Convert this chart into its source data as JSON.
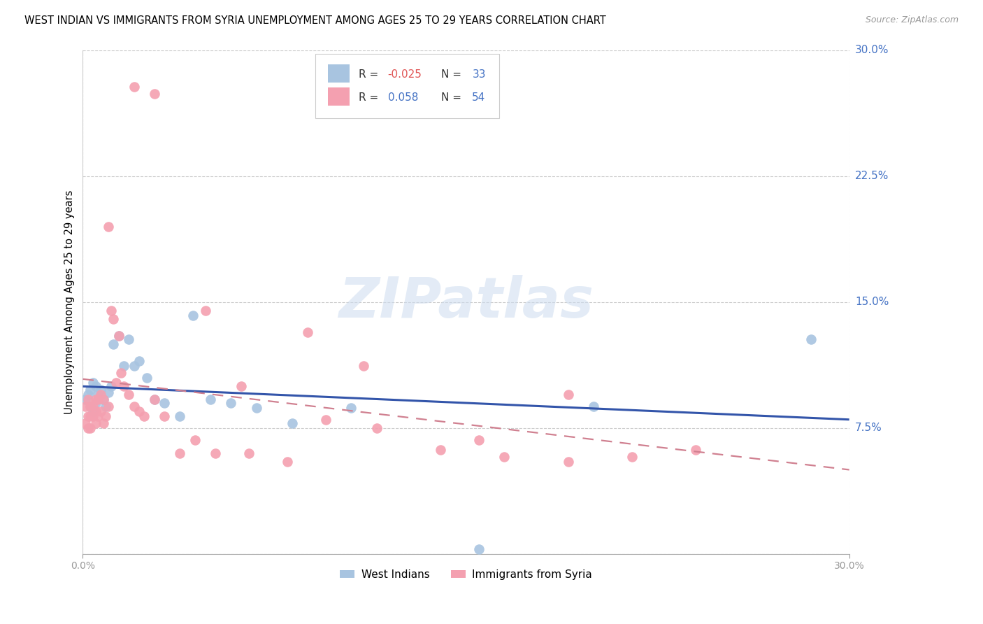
{
  "title": "WEST INDIAN VS IMMIGRANTS FROM SYRIA UNEMPLOYMENT AMONG AGES 25 TO 29 YEARS CORRELATION CHART",
  "source": "Source: ZipAtlas.com",
  "ylabel": "Unemployment Among Ages 25 to 29 years",
  "xlim": [
    0.0,
    0.3
  ],
  "ylim": [
    0.0,
    0.3
  ],
  "color_blue": "#a8c4e0",
  "color_pink": "#f4a0b0",
  "trend_blue": "#3355aa",
  "trend_pink": "#d08090",
  "blue_label": "West Indians",
  "pink_label": "Immigrants from Syria",
  "R_blue": -0.025,
  "N_blue": 33,
  "R_pink": 0.058,
  "N_pink": 54,
  "blue_x": [
    0.001,
    0.002,
    0.003,
    0.003,
    0.004,
    0.004,
    0.005,
    0.005,
    0.006,
    0.007,
    0.008,
    0.009,
    0.01,
    0.011,
    0.012,
    0.014,
    0.016,
    0.018,
    0.02,
    0.022,
    0.025,
    0.028,
    0.032,
    0.038,
    0.043,
    0.05,
    0.058,
    0.068,
    0.082,
    0.105,
    0.155,
    0.2,
    0.285
  ],
  "blue_y": [
    0.092,
    0.095,
    0.098,
    0.088,
    0.102,
    0.085,
    0.1,
    0.09,
    0.095,
    0.098,
    0.092,
    0.088,
    0.096,
    0.1,
    0.125,
    0.13,
    0.112,
    0.128,
    0.112,
    0.115,
    0.105,
    0.092,
    0.09,
    0.082,
    0.142,
    0.092,
    0.09,
    0.087,
    0.078,
    0.087,
    0.003,
    0.088,
    0.128
  ],
  "pink_x": [
    0.001,
    0.001,
    0.002,
    0.002,
    0.002,
    0.003,
    0.003,
    0.003,
    0.004,
    0.004,
    0.005,
    0.005,
    0.005,
    0.006,
    0.006,
    0.007,
    0.007,
    0.008,
    0.008,
    0.009,
    0.01,
    0.011,
    0.012,
    0.013,
    0.014,
    0.015,
    0.016,
    0.018,
    0.02,
    0.022,
    0.024,
    0.028,
    0.032,
    0.038,
    0.044,
    0.052,
    0.065,
    0.08,
    0.095,
    0.115,
    0.14,
    0.165,
    0.19,
    0.215,
    0.24,
    0.02,
    0.028,
    0.01,
    0.155,
    0.19,
    0.048,
    0.062,
    0.088,
    0.11
  ],
  "pink_y": [
    0.088,
    0.078,
    0.092,
    0.082,
    0.075,
    0.088,
    0.082,
    0.075,
    0.088,
    0.082,
    0.092,
    0.085,
    0.078,
    0.092,
    0.082,
    0.095,
    0.085,
    0.092,
    0.078,
    0.082,
    0.088,
    0.145,
    0.14,
    0.102,
    0.13,
    0.108,
    0.1,
    0.095,
    0.088,
    0.085,
    0.082,
    0.092,
    0.082,
    0.06,
    0.068,
    0.06,
    0.06,
    0.055,
    0.08,
    0.075,
    0.062,
    0.058,
    0.055,
    0.058,
    0.062,
    0.278,
    0.274,
    0.195,
    0.068,
    0.095,
    0.145,
    0.1,
    0.132,
    0.112
  ]
}
